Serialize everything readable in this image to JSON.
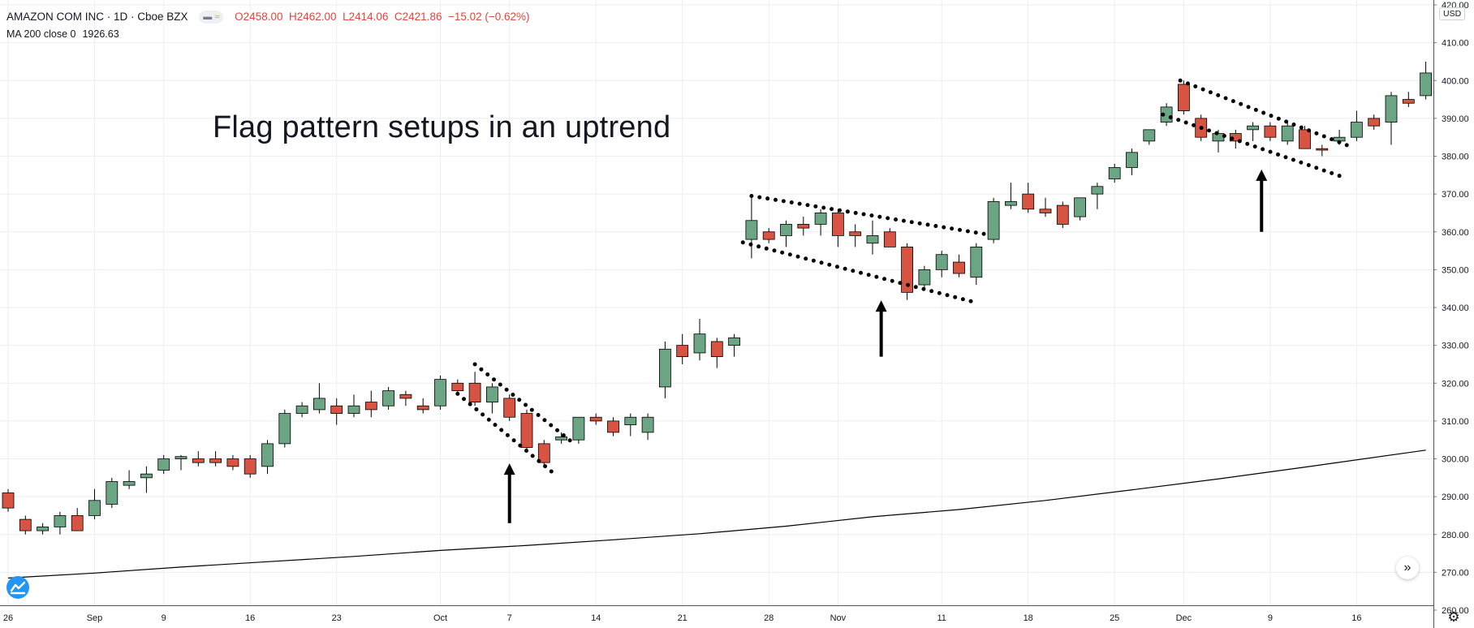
{
  "header": {
    "symbol_line": "AMAZON COM INC · 1D · Cboe BZX",
    "open": "O2458.00",
    "high": "H2462.00",
    "low": "L2414.06",
    "close": "C2421.86",
    "change": "−15.02 (−0.62%)",
    "indicator_label": "MA 200 close 0",
    "indicator_value": "1926.63"
  },
  "currency": "USD",
  "annotation": "Flag pattern setups in an uptrend",
  "icons": {
    "scroll": "chevron-double-right-icon",
    "settings": "gear-icon",
    "logo": "tradingview-logo"
  },
  "colors": {
    "up": "#6ba583",
    "down": "#d75442",
    "ma": "#000000",
    "grid": "#eceef2",
    "text": "#131722"
  },
  "chart_data": {
    "type": "candlestick",
    "y_axis_labels": [
      "260.00",
      "270.00",
      "280.00",
      "290.00",
      "300.00",
      "310.00",
      "320.00",
      "330.00",
      "340.00",
      "350.00",
      "360.00",
      "370.00",
      "380.00",
      "390.00",
      "400.00",
      "410.00",
      "420.00"
    ],
    "ylim": [
      257,
      420
    ],
    "x_axis_labels": [
      {
        "label": "26",
        "bar": 0
      },
      {
        "label": "Sep",
        "bar": 5
      },
      {
        "label": "9",
        "bar": 9
      },
      {
        "label": "16",
        "bar": 14
      },
      {
        "label": "23",
        "bar": 19
      },
      {
        "label": "Oct",
        "bar": 25
      },
      {
        "label": "7",
        "bar": 29
      },
      {
        "label": "14",
        "bar": 34
      },
      {
        "label": "21",
        "bar": 39
      },
      {
        "label": "28",
        "bar": 44
      },
      {
        "label": "Nov",
        "bar": 48
      },
      {
        "label": "11",
        "bar": 54
      },
      {
        "label": "18",
        "bar": 59
      },
      {
        "label": "25",
        "bar": 64
      },
      {
        "label": "Dec",
        "bar": 68
      },
      {
        "label": "9",
        "bar": 73
      },
      {
        "label": "16",
        "bar": 78
      }
    ],
    "candles": [
      {
        "o": 291,
        "h": 292,
        "l": 286,
        "c": 287
      },
      {
        "o": 284,
        "h": 285,
        "l": 280,
        "c": 281
      },
      {
        "o": 281,
        "h": 283,
        "l": 280,
        "c": 282
      },
      {
        "o": 282,
        "h": 286,
        "l": 280,
        "c": 285
      },
      {
        "o": 285,
        "h": 287,
        "l": 281,
        "c": 281
      },
      {
        "o": 285,
        "h": 292,
        "l": 284,
        "c": 289
      },
      {
        "o": 288,
        "h": 295,
        "l": 287,
        "c": 294
      },
      {
        "o": 293,
        "h": 297,
        "l": 292,
        "c": 294
      },
      {
        "o": 295,
        "h": 298,
        "l": 291,
        "c": 296
      },
      {
        "o": 297,
        "h": 301,
        "l": 296,
        "c": 300
      },
      {
        "o": 300,
        "h": 301,
        "l": 297,
        "c": 300.6
      },
      {
        "o": 300,
        "h": 302,
        "l": 298,
        "c": 299
      },
      {
        "o": 300,
        "h": 302,
        "l": 298,
        "c": 299
      },
      {
        "o": 300,
        "h": 301,
        "l": 297,
        "c": 298
      },
      {
        "o": 300,
        "h": 301,
        "l": 295,
        "c": 296
      },
      {
        "o": 298,
        "h": 305,
        "l": 296,
        "c": 304
      },
      {
        "o": 304,
        "h": 313,
        "l": 303,
        "c": 312
      },
      {
        "o": 312,
        "h": 315,
        "l": 311,
        "c": 314
      },
      {
        "o": 313,
        "h": 320,
        "l": 312,
        "c": 316
      },
      {
        "o": 314,
        "h": 316,
        "l": 309,
        "c": 312
      },
      {
        "o": 312,
        "h": 317,
        "l": 311,
        "c": 314
      },
      {
        "o": 315,
        "h": 318,
        "l": 311,
        "c": 313
      },
      {
        "o": 314,
        "h": 319,
        "l": 313,
        "c": 318
      },
      {
        "o": 317,
        "h": 318,
        "l": 314,
        "c": 316
      },
      {
        "o": 314,
        "h": 316,
        "l": 312,
        "c": 313
      },
      {
        "o": 314,
        "h": 322,
        "l": 313,
        "c": 321
      },
      {
        "o": 320,
        "h": 321,
        "l": 317,
        "c": 318
      },
      {
        "o": 320,
        "h": 323,
        "l": 314,
        "c": 315
      },
      {
        "o": 315,
        "h": 320,
        "l": 312,
        "c": 319
      },
      {
        "o": 316,
        "h": 317,
        "l": 310,
        "c": 311
      },
      {
        "o": 312,
        "h": 313,
        "l": 302,
        "c": 303
      },
      {
        "o": 304,
        "h": 305,
        "l": 298,
        "c": 299
      },
      {
        "o": 305,
        "h": 307,
        "l": 304,
        "c": 305.8
      },
      {
        "o": 305,
        "h": 311,
        "l": 304,
        "c": 311
      },
      {
        "o": 311,
        "h": 312,
        "l": 309,
        "c": 310
      },
      {
        "o": 310,
        "h": 311,
        "l": 306,
        "c": 307
      },
      {
        "o": 309,
        "h": 312,
        "l": 306,
        "c": 311
      },
      {
        "o": 307,
        "h": 312,
        "l": 305,
        "c": 311
      },
      {
        "o": 319,
        "h": 331,
        "l": 316,
        "c": 329
      },
      {
        "o": 330,
        "h": 333,
        "l": 325,
        "c": 327
      },
      {
        "o": 328,
        "h": 337,
        "l": 326,
        "c": 333
      },
      {
        "o": 331,
        "h": 332,
        "l": 324,
        "c": 327
      },
      {
        "o": 330,
        "h": 333,
        "l": 327,
        "c": 332
      },
      {
        "o": 358,
        "h": 369,
        "l": 353,
        "c": 363
      },
      {
        "o": 360,
        "h": 361,
        "l": 357,
        "c": 358
      },
      {
        "o": 359,
        "h": 363,
        "l": 356,
        "c": 362
      },
      {
        "o": 362,
        "h": 364,
        "l": 359,
        "c": 361
      },
      {
        "o": 362,
        "h": 366,
        "l": 359,
        "c": 365
      },
      {
        "o": 365,
        "h": 366,
        "l": 356,
        "c": 359
      },
      {
        "o": 360,
        "h": 362,
        "l": 356,
        "c": 359
      },
      {
        "o": 357,
        "h": 363,
        "l": 354,
        "c": 359
      },
      {
        "o": 360,
        "h": 361,
        "l": 356,
        "c": 356
      },
      {
        "o": 356,
        "h": 357,
        "l": 342,
        "c": 344
      },
      {
        "o": 346,
        "h": 351,
        "l": 345,
        "c": 350
      },
      {
        "o": 350,
        "h": 355,
        "l": 348,
        "c": 354
      },
      {
        "o": 352,
        "h": 354,
        "l": 348,
        "c": 349
      },
      {
        "o": 348,
        "h": 357,
        "l": 346,
        "c": 356
      },
      {
        "o": 358,
        "h": 369,
        "l": 357,
        "c": 368
      },
      {
        "o": 367,
        "h": 373,
        "l": 366,
        "c": 368
      },
      {
        "o": 370,
        "h": 373,
        "l": 365,
        "c": 366
      },
      {
        "o": 366,
        "h": 369,
        "l": 364,
        "c": 365
      },
      {
        "o": 367,
        "h": 368,
        "l": 361,
        "c": 362
      },
      {
        "o": 364,
        "h": 369,
        "l": 363,
        "c": 369
      },
      {
        "o": 370,
        "h": 373,
        "l": 366,
        "c": 372
      },
      {
        "o": 374,
        "h": 378,
        "l": 373,
        "c": 377
      },
      {
        "o": 377,
        "h": 382,
        "l": 375,
        "c": 381
      },
      {
        "o": 384,
        "h": 387,
        "l": 383,
        "c": 387
      },
      {
        "o": 389,
        "h": 394,
        "l": 388,
        "c": 393
      },
      {
        "o": 399,
        "h": 400,
        "l": 391,
        "c": 392
      },
      {
        "o": 390,
        "h": 391,
        "l": 384,
        "c": 385
      },
      {
        "o": 384,
        "h": 387,
        "l": 381,
        "c": 386
      },
      {
        "o": 386,
        "h": 387,
        "l": 382,
        "c": 384
      },
      {
        "o": 387,
        "h": 389,
        "l": 384,
        "c": 388
      },
      {
        "o": 388,
        "h": 389,
        "l": 384,
        "c": 385
      },
      {
        "o": 384,
        "h": 389,
        "l": 383,
        "c": 388
      },
      {
        "o": 387,
        "h": 388,
        "l": 382,
        "c": 382
      },
      {
        "o": 382,
        "h": 383,
        "l": 380,
        "c": 381.6
      },
      {
        "o": 384,
        "h": 387,
        "l": 383,
        "c": 385
      },
      {
        "o": 385,
        "h": 392,
        "l": 384,
        "c": 389
      },
      {
        "o": 390,
        "h": 391,
        "l": 387,
        "c": 388
      },
      {
        "o": 389,
        "h": 397,
        "l": 383,
        "c": 396
      },
      {
        "o": 395,
        "h": 397,
        "l": 393,
        "c": 394
      },
      {
        "o": 396,
        "h": 405,
        "l": 395,
        "c": 402
      }
    ],
    "ma200": [
      {
        "bar": 0,
        "v": 268.5
      },
      {
        "bar": 5,
        "v": 269.8
      },
      {
        "bar": 10,
        "v": 271.4
      },
      {
        "bar": 15,
        "v": 272.8
      },
      {
        "bar": 20,
        "v": 274.2
      },
      {
        "bar": 25,
        "v": 275.8
      },
      {
        "bar": 30,
        "v": 277.1
      },
      {
        "bar": 35,
        "v": 278.6
      },
      {
        "bar": 40,
        "v": 280.2
      },
      {
        "bar": 45,
        "v": 282.2
      },
      {
        "bar": 50,
        "v": 284.7
      },
      {
        "bar": 55,
        "v": 286.6
      },
      {
        "bar": 60,
        "v": 289.0
      },
      {
        "bar": 65,
        "v": 291.8
      },
      {
        "bar": 70,
        "v": 294.7
      },
      {
        "bar": 75,
        "v": 297.8
      },
      {
        "bar": 82,
        "v": 302.3
      }
    ],
    "flag_lines": [
      {
        "bar1": 27,
        "p1": 325,
        "bar2": 32.6,
        "p2": 304.5
      },
      {
        "bar1": 26,
        "p1": 317.2,
        "bar2": 31.6,
        "p2": 296
      },
      {
        "bar1": 43,
        "p1": 369.5,
        "bar2": 56.8,
        "p2": 359.2
      },
      {
        "bar1": 42.5,
        "p1": 357.2,
        "bar2": 56,
        "p2": 341.3
      },
      {
        "bar1": 67.8,
        "p1": 400,
        "bar2": 77.5,
        "p2": 382.8
      },
      {
        "bar1": 66.8,
        "p1": 391,
        "bar2": 77.2,
        "p2": 374.5
      }
    ],
    "arrows": [
      {
        "bar": 29,
        "from": 283,
        "to": 298.8
      },
      {
        "bar": 50.5,
        "from": 327,
        "to": 341.9
      },
      {
        "bar": 72.5,
        "from": 360,
        "to": 376.5
      }
    ]
  }
}
